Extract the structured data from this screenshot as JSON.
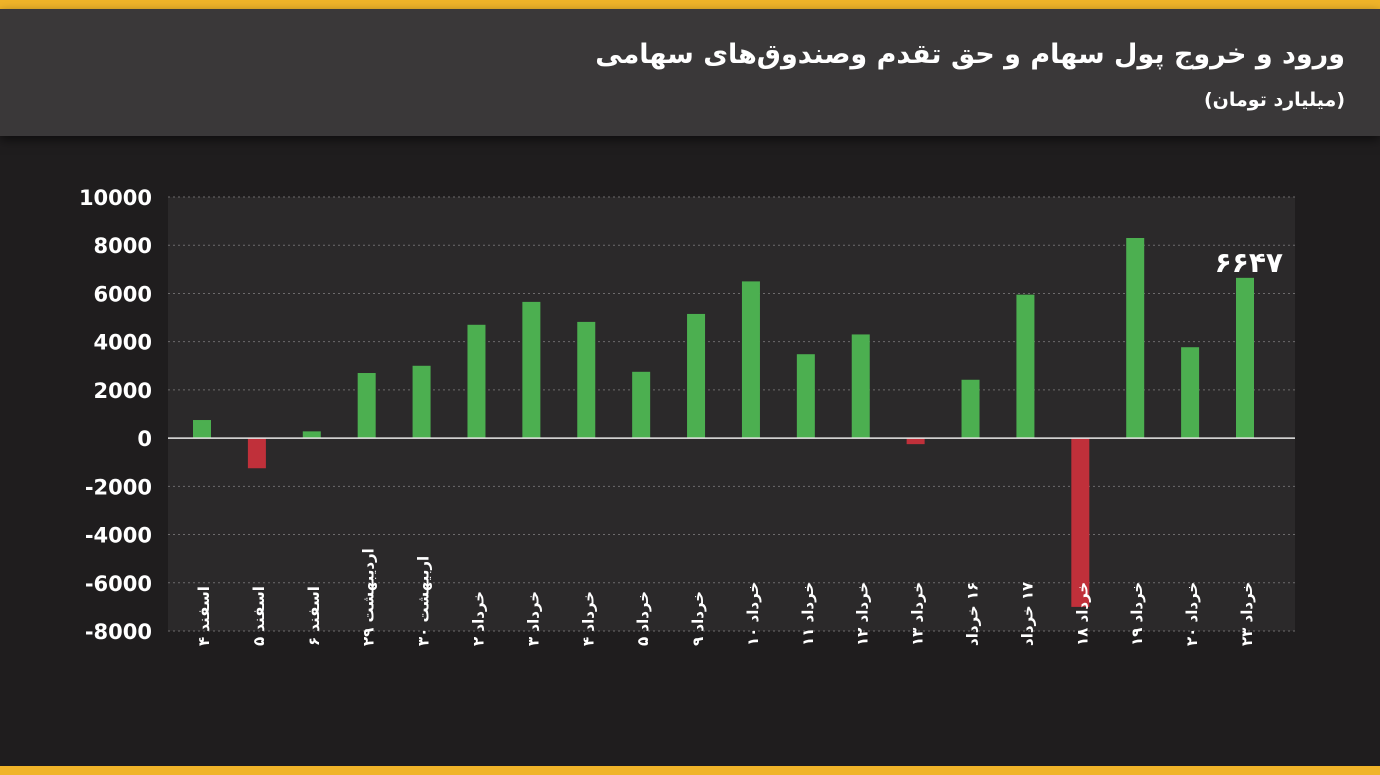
{
  "header": {
    "title": "ورود و خروج پول سهام و حق تقدم وصندوق‌های سهامی",
    "subtitle": "(میلیارد تومان)"
  },
  "colors": {
    "accent": "#f0b429",
    "positive": "#4caf50",
    "negative": "#c0303a",
    "header_bg": "#3a3839",
    "chart_bg": "#2b292a"
  },
  "chart_data": {
    "type": "bar",
    "title": "ورود و خروج پول سهام و حق تقدم وصندوق‌های سهامی",
    "ylabel": "(میلیارد تومان)",
    "ylim": [
      -8000,
      10000
    ],
    "yticks": [
      10000,
      8000,
      6000,
      4000,
      2000,
      0,
      -2000,
      -4000,
      -6000,
      -8000
    ],
    "ytick_labels": [
      "10000",
      "8000",
      "6000",
      "4000",
      "2000",
      "0",
      "-2000",
      "-4000",
      "-6000",
      "-8000"
    ],
    "grid": true,
    "categories": [
      "اسفند ۴",
      "اسفند ۵",
      "اسفند ۶",
      "اردیبهشت ۲۹",
      "اربیهشت ۳۰",
      "خرداد ۲",
      "خرداد ۳",
      "خرداد ۴",
      "خرداد ۵",
      "خرداد ۹",
      "خرداد ۱۰",
      "خرداد ۱۱",
      "خرداد ۱۲",
      "خرداد ۱۳",
      "۱۶ خرداد",
      "۱۷ خرداد",
      "خرداد ۱۸",
      "خرداد ۱۹",
      "خرداد ۲۰",
      "خرداد ۲۳"
    ],
    "values": [
      750,
      -1250,
      280,
      2700,
      3000,
      4700,
      5650,
      4820,
      2750,
      5150,
      6500,
      3480,
      4300,
      -250,
      2420,
      5950,
      -7000,
      8300,
      3770,
      6647
    ],
    "annotations": [
      {
        "category": "خرداد ۲۳",
        "text": "۶۶۴۷"
      }
    ]
  }
}
